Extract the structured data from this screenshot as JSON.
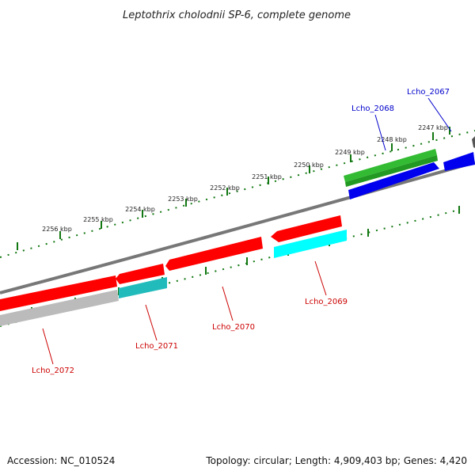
{
  "title": "Leptothrix cholodnii SP-6, complete genome",
  "footer": {
    "accession": "Accession: NC_010524",
    "summary": "Topology: circular; Length: 4,909,403 bp; Genes: 4,420"
  },
  "ruler_labels": [
    "2247 kbp",
    "2248 kbp",
    "2249 kbp",
    "2250 kbp",
    "2251 kbp",
    "2252 kbp",
    "2253 kbp",
    "2254 kbp",
    "2255 kbp",
    "2256 kbp"
  ],
  "genes": {
    "forward": [
      {
        "label": "Lcho_2067",
        "color": "#0000cc"
      },
      {
        "label": "Lcho_2068",
        "color": "#0000cc"
      }
    ],
    "reverse": [
      {
        "label": "Lcho_2069",
        "color": "#cc0000"
      },
      {
        "label": "Lcho_2070",
        "color": "#cc0000"
      },
      {
        "label": "Lcho_2071",
        "color": "#cc0000"
      },
      {
        "label": "Lcho_2072",
        "color": "#cc0000"
      }
    ]
  },
  "colors": {
    "cds": "#ff0000",
    "forward_cds": "#0000ee",
    "go_green": "#33bb33",
    "cyan": "#00ffff",
    "teal": "#22bbbb",
    "grey": "#bbbbbb",
    "backbone": "#777777",
    "ticks": "#117711"
  }
}
